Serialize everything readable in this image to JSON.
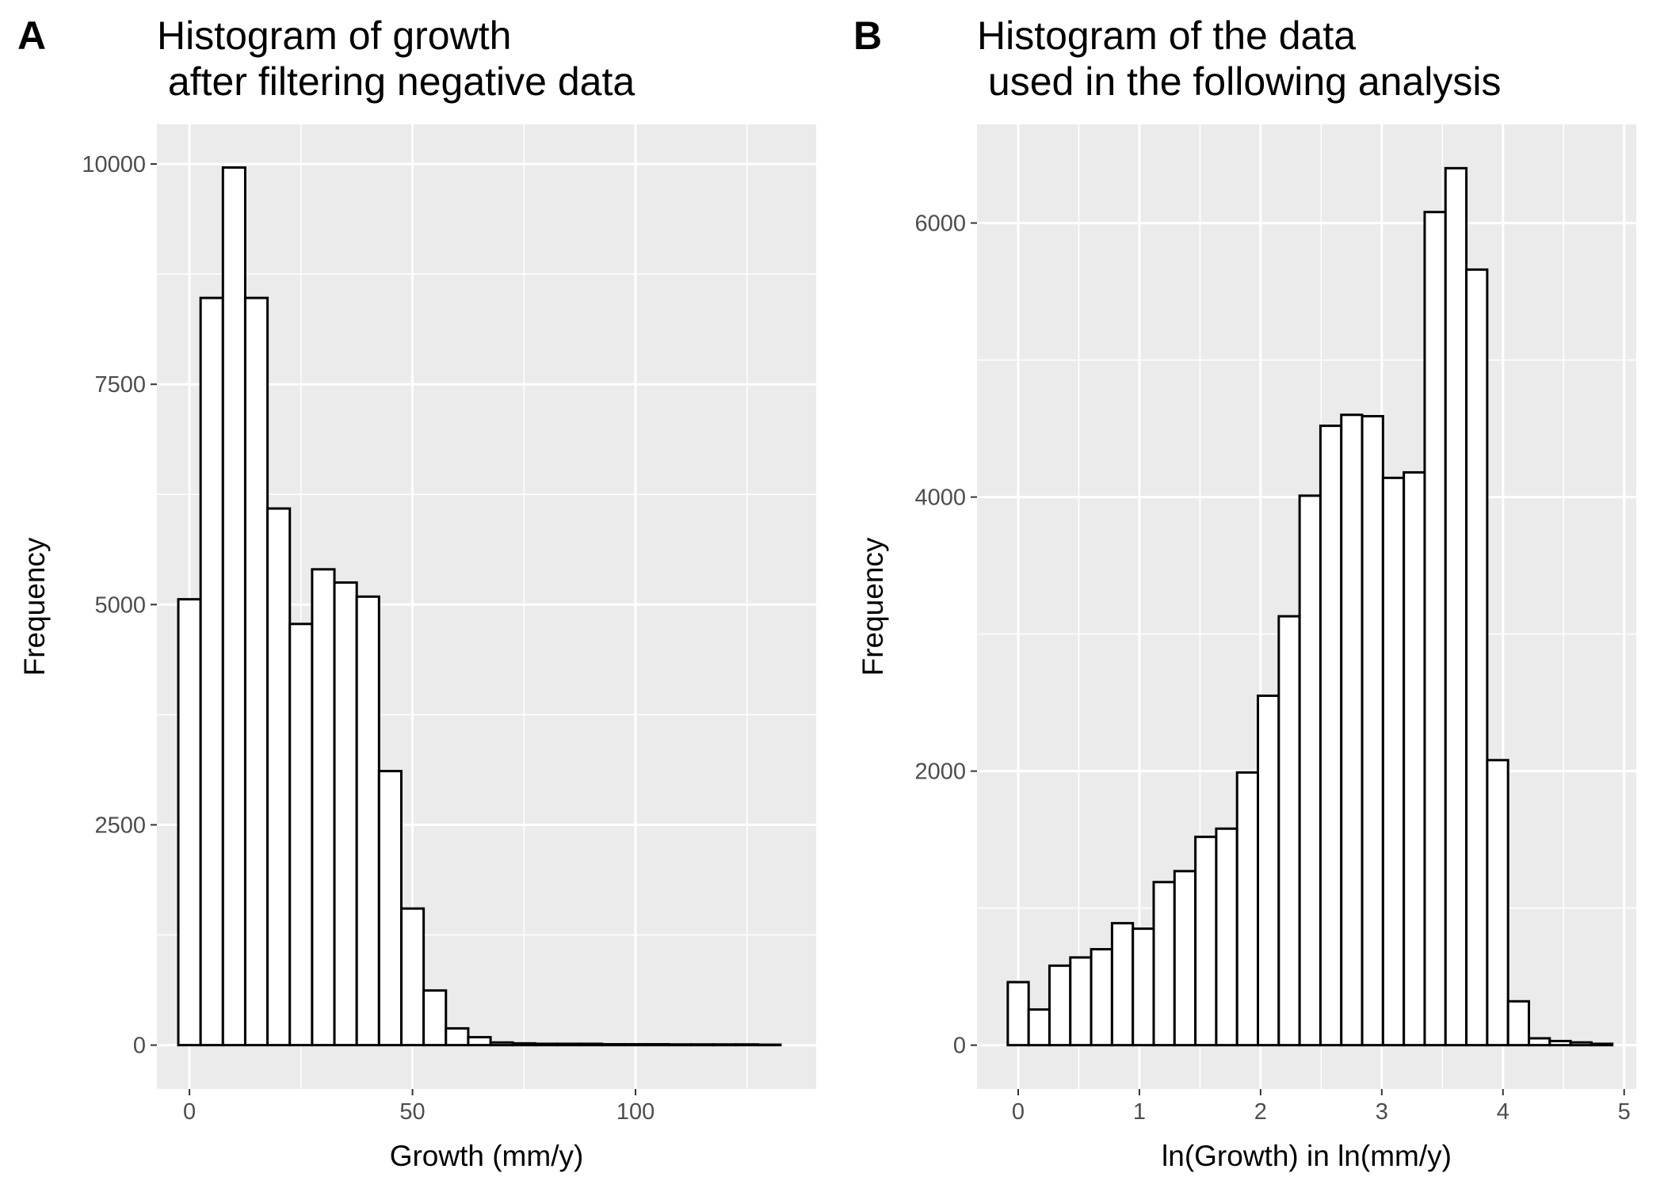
{
  "chart_data": [
    {
      "panel": "A",
      "type": "bar",
      "title_lines": [
        "Histogram of growth",
        " after filtering negative data"
      ],
      "xlabel": "Growth (mm/y)",
      "ylabel": "Frequency",
      "bin_width": 5,
      "bin_centers": [
        0,
        5,
        10,
        15,
        20,
        25,
        30,
        35,
        40,
        45,
        50,
        55,
        60,
        65,
        70,
        75,
        80,
        85,
        90,
        95,
        100,
        105,
        110,
        115,
        120,
        125,
        130
      ],
      "values": [
        5060,
        8480,
        9960,
        8480,
        6090,
        4780,
        5400,
        5250,
        5090,
        3110,
        1550,
        620,
        190,
        90,
        30,
        20,
        15,
        15,
        15,
        10,
        10,
        10,
        8,
        8,
        8,
        8,
        5
      ],
      "xlim": [
        -7.3,
        140.5
      ],
      "ylim": [
        -498,
        10450
      ],
      "xticks": [
        0,
        50,
        100
      ],
      "xtick_labels": [
        "0",
        "50",
        "100"
      ],
      "yticks": [
        0,
        2500,
        5000,
        7500,
        10000
      ],
      "ytick_labels": [
        "0",
        "2500",
        "5000",
        "7500",
        "10000"
      ],
      "grid": true
    },
    {
      "panel": "B",
      "type": "bar",
      "title_lines": [
        "Histogram of the data",
        " used in the following analysis"
      ],
      "xlabel": "ln(Growth) in ln(mm/y)",
      "ylabel": "Frequency",
      "bin_width": 0.172,
      "bin_centers": [
        0.0,
        0.172,
        0.344,
        0.516,
        0.688,
        0.86,
        1.032,
        1.204,
        1.376,
        1.548,
        1.72,
        1.892,
        2.064,
        2.236,
        2.408,
        2.58,
        2.752,
        2.924,
        3.096,
        3.268,
        3.44,
        3.612,
        3.784,
        3.956,
        4.128,
        4.3,
        4.472,
        4.644,
        4.816
      ],
      "values": [
        460,
        260,
        580,
        640,
        700,
        890,
        850,
        1190,
        1270,
        1520,
        1580,
        1990,
        2550,
        3130,
        4010,
        4520,
        4600,
        4590,
        4140,
        4180,
        6080,
        6400,
        5660,
        2080,
        320,
        50,
        30,
        20,
        10
      ],
      "xlim": [
        -0.34,
        5.1
      ],
      "ylim": [
        -320,
        6720
      ],
      "xticks": [
        0,
        1,
        2,
        3,
        4,
        5
      ],
      "xtick_labels": [
        "0",
        "1",
        "2",
        "3",
        "4",
        "5"
      ],
      "yticks": [
        0,
        2000,
        4000,
        6000
      ],
      "ytick_labels": [
        "0",
        "2000",
        "4000",
        "6000"
      ],
      "grid": true
    }
  ],
  "colors": {
    "panel_background": "#ebebeb",
    "grid_major": "#ffffff",
    "grid_minor": "#ffffff",
    "bar_fill": "#ffffff",
    "bar_stroke": "#000000",
    "tick_text": "#4d4d4d",
    "tick_mark": "#333333"
  }
}
